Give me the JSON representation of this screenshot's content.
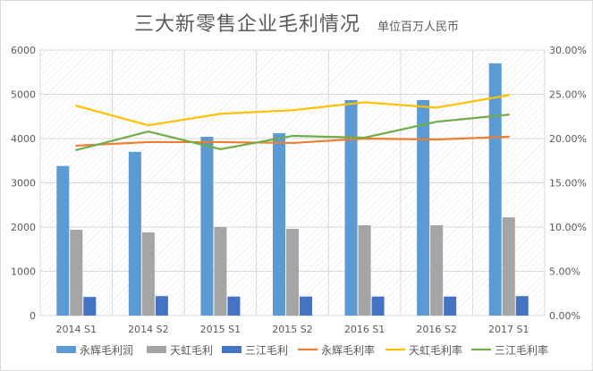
{
  "chart_data": {
    "type": "bar",
    "title": "三大新零售企业毛利情况",
    "subtitle": "单位百万人民币",
    "categories": [
      "2014 S1",
      "2014 S2",
      "2015 S1",
      "2015 S2",
      "2016 S1",
      "2016 S2",
      "2017 S1"
    ],
    "y_left": {
      "min": 0,
      "max": 6000,
      "ticks": [
        "0",
        "1000",
        "2000",
        "3000",
        "4000",
        "5000",
        "6000"
      ]
    },
    "y_right": {
      "min": 0,
      "max": 30,
      "ticks": [
        "0.00%",
        "5.00%",
        "10.00%",
        "15.00%",
        "20.00%",
        "25.00%",
        "30.00%"
      ]
    },
    "bar_series": [
      {
        "name": "永辉毛利润",
        "color": "#5b9bd5",
        "values": [
          3380,
          3700,
          4040,
          4120,
          4870,
          4870,
          5700
        ]
      },
      {
        "name": "天虹毛利",
        "color": "#a5a5a5",
        "values": [
          1940,
          1880,
          2000,
          1960,
          2040,
          2040,
          2220
        ]
      },
      {
        "name": "三江毛利",
        "color": "#4472c4",
        "values": [
          420,
          440,
          430,
          430,
          430,
          430,
          440
        ]
      }
    ],
    "line_series": [
      {
        "name": "永辉毛利率",
        "color": "#ed7d31",
        "values": [
          19.2,
          19.6,
          19.6,
          19.5,
          20.0,
          19.9,
          20.2
        ]
      },
      {
        "name": "天虹毛利率",
        "color": "#ffc000",
        "values": [
          23.7,
          21.5,
          22.8,
          23.2,
          24.1,
          23.5,
          24.9
        ]
      },
      {
        "name": "三江毛利率",
        "color": "#70ad47",
        "values": [
          18.7,
          20.8,
          18.8,
          20.3,
          20.1,
          21.9,
          22.7
        ]
      }
    ],
    "grid": true,
    "legend_position": "bottom"
  }
}
